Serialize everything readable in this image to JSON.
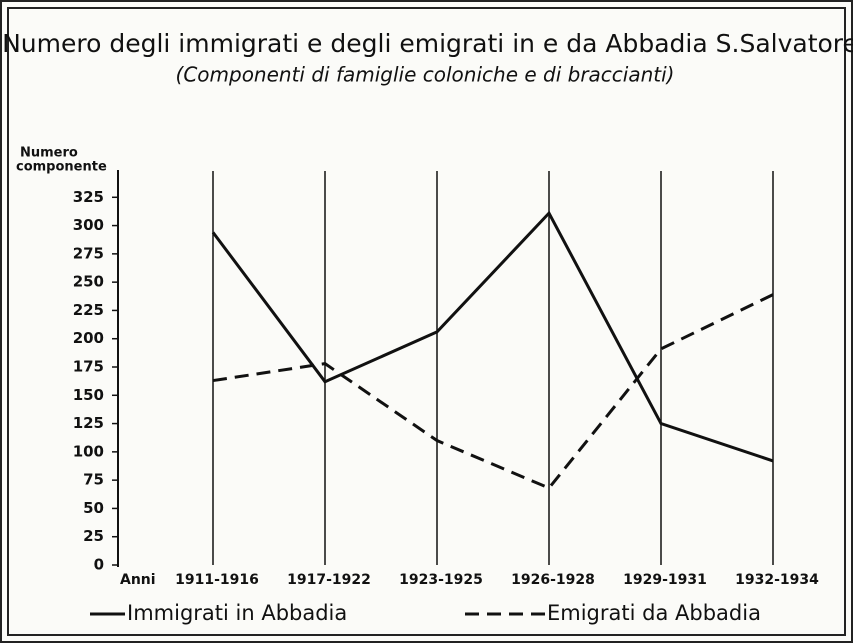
{
  "chart_data": {
    "type": "line",
    "title": "Numero degli immigrati e degli emigrati in e da Abbadia S.Salvatore",
    "subtitle": "(Componenti di famiglie coloniche e di braccianti)",
    "ylabel": [
      "Numero",
      "componente"
    ],
    "xlabel": "Anni",
    "categories": [
      "1911-1916",
      "1917-1922",
      "1923-1925",
      "1926-1928",
      "1929-1931",
      "1932-1934"
    ],
    "series": [
      {
        "name": "Immigrati in Abbadia",
        "color": "#111111",
        "dash": false,
        "values": [
          294,
          162,
          206,
          311,
          125,
          92
        ]
      },
      {
        "name": "Emigrati da Abbadia",
        "color": "#111111",
        "dash": true,
        "values": [
          163,
          178,
          110,
          68,
          191,
          239
        ]
      }
    ],
    "ylim": [
      0,
      350
    ],
    "yticks": [
      0,
      25,
      50,
      75,
      100,
      125,
      150,
      175,
      200,
      225,
      250,
      275,
      300,
      325
    ],
    "grid": true,
    "legend": "bottom"
  }
}
